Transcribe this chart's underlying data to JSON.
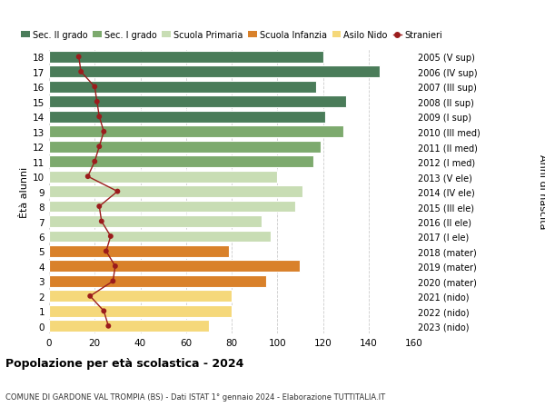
{
  "ages": [
    18,
    17,
    16,
    15,
    14,
    13,
    12,
    11,
    10,
    9,
    8,
    7,
    6,
    5,
    4,
    3,
    2,
    1,
    0
  ],
  "years": [
    "2005 (V sup)",
    "2006 (IV sup)",
    "2007 (III sup)",
    "2008 (II sup)",
    "2009 (I sup)",
    "2010 (III med)",
    "2011 (II med)",
    "2012 (I med)",
    "2013 (V ele)",
    "2014 (IV ele)",
    "2015 (III ele)",
    "2016 (II ele)",
    "2017 (I ele)",
    "2018 (mater)",
    "2019 (mater)",
    "2020 (mater)",
    "2021 (nido)",
    "2022 (nido)",
    "2023 (nido)"
  ],
  "bar_values": [
    120,
    145,
    117,
    130,
    121,
    129,
    119,
    116,
    100,
    111,
    108,
    93,
    97,
    79,
    110,
    95,
    80,
    80,
    70
  ],
  "stranieri": [
    13,
    14,
    20,
    21,
    22,
    24,
    22,
    20,
    17,
    30,
    22,
    23,
    27,
    25,
    29,
    28,
    18,
    24,
    26
  ],
  "bar_colors": [
    "#4a7c59",
    "#4a7c59",
    "#4a7c59",
    "#4a7c59",
    "#4a7c59",
    "#7daa6e",
    "#7daa6e",
    "#7daa6e",
    "#c8ddb4",
    "#c8ddb4",
    "#c8ddb4",
    "#c8ddb4",
    "#c8ddb4",
    "#d9812a",
    "#d9812a",
    "#d9812a",
    "#f5d87a",
    "#f5d87a",
    "#f5d87a"
  ],
  "legend_labels": [
    "Sec. II grado",
    "Sec. I grado",
    "Scuola Primaria",
    "Scuola Infanzia",
    "Asilo Nido",
    "Stranieri"
  ],
  "legend_colors": [
    "#4a7c59",
    "#7daa6e",
    "#c8ddb4",
    "#d9812a",
    "#f5d87a",
    "#9b1c1c"
  ],
  "title": "Popolazione per età scolastica - 2024",
  "subtitle": "COMUNE DI GARDONE VAL TROMPIA (BS) - Dati ISTAT 1° gennaio 2024 - Elaborazione TUTTITALIA.IT",
  "ylabel_left": "Ètà alunni",
  "ylabel_right": "Anni di nascita",
  "xlim": [
    0,
    160
  ],
  "xticks": [
    0,
    20,
    40,
    60,
    80,
    100,
    120,
    140,
    160
  ],
  "stranieri_color": "#9b1c1c",
  "grid_color": "#cccccc"
}
